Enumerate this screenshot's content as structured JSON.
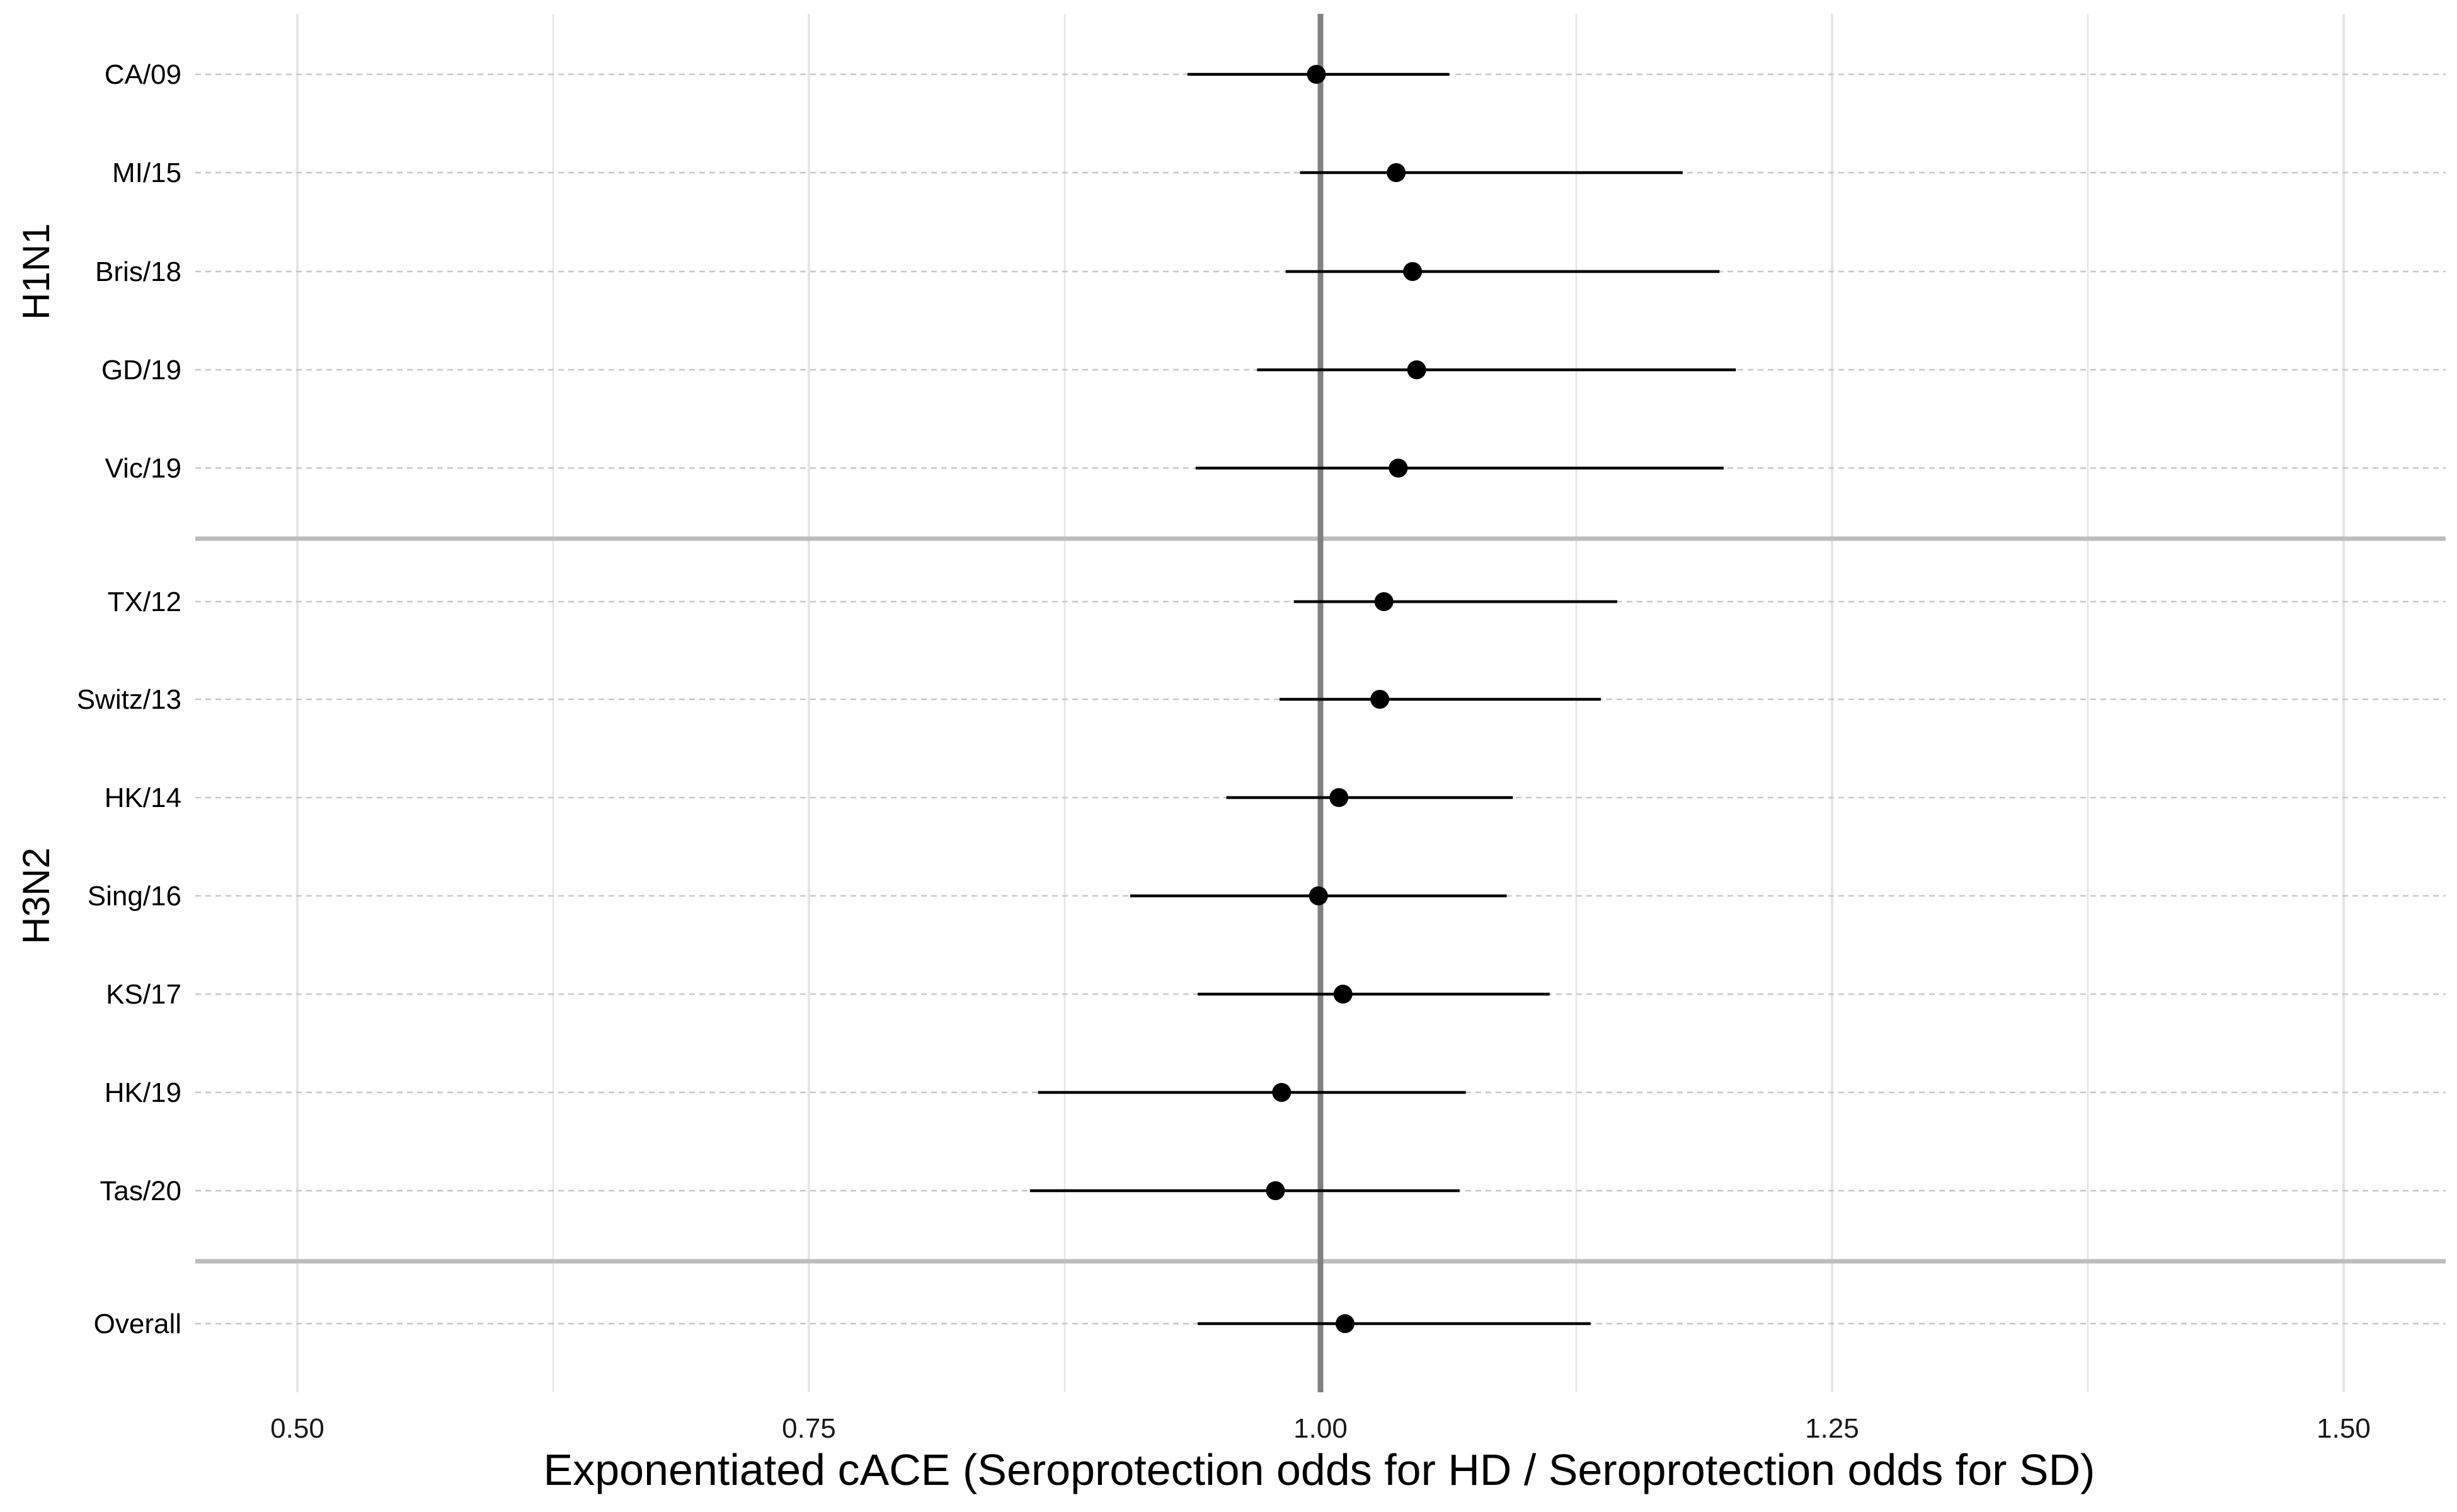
{
  "chart_data": {
    "type": "scatter",
    "subtype": "forest-plot",
    "title": "",
    "xlabel": "Exponentiated cACE (Seroprotection odds for HD / Seroprotection odds for SD)",
    "ylabel": "",
    "xlim": [
      0.45,
      1.55
    ],
    "x_ticks": [
      0.5,
      0.75,
      1.0,
      1.25,
      1.5
    ],
    "x_tick_labels": [
      "0.50",
      "0.75",
      "1.00",
      "1.25",
      "1.50"
    ],
    "reference_line": 1.0,
    "grid": true,
    "legend": "none",
    "colors": {
      "point": "#000000",
      "ci": "#000000",
      "reference": "#808080",
      "separator": "#bdbdbd",
      "grid": "#e6e6e6",
      "row_guide": "#c8c8c8"
    },
    "groups": [
      {
        "name": "H1N1",
        "rows": [
          {
            "label": "CA/09",
            "estimate": 0.998,
            "lower": 0.935,
            "upper": 1.063
          },
          {
            "label": "MI/15",
            "estimate": 1.037,
            "lower": 0.99,
            "upper": 1.177
          },
          {
            "label": "Bris/18",
            "estimate": 1.045,
            "lower": 0.983,
            "upper": 1.195
          },
          {
            "label": "GD/19",
            "estimate": 1.047,
            "lower": 0.969,
            "upper": 1.203
          },
          {
            "label": "Vic/19",
            "estimate": 1.038,
            "lower": 0.939,
            "upper": 1.197
          }
        ]
      },
      {
        "name": "H3N2",
        "rows": [
          {
            "label": "TX/12",
            "estimate": 1.031,
            "lower": 0.987,
            "upper": 1.145
          },
          {
            "label": "Switz/13",
            "estimate": 1.029,
            "lower": 0.98,
            "upper": 1.137
          },
          {
            "label": "HK/14",
            "estimate": 1.009,
            "lower": 0.954,
            "upper": 1.094
          },
          {
            "label": "Sing/16",
            "estimate": 0.999,
            "lower": 0.907,
            "upper": 1.091
          },
          {
            "label": "KS/17",
            "estimate": 1.011,
            "lower": 0.94,
            "upper": 1.112
          },
          {
            "label": "HK/19",
            "estimate": 0.981,
            "lower": 0.862,
            "upper": 1.071
          },
          {
            "label": "Tas/20",
            "estimate": 0.978,
            "lower": 0.858,
            "upper": 1.068
          }
        ]
      },
      {
        "name": "",
        "rows": [
          {
            "label": "Overall",
            "estimate": 1.012,
            "lower": 0.94,
            "upper": 1.132
          }
        ]
      }
    ]
  }
}
